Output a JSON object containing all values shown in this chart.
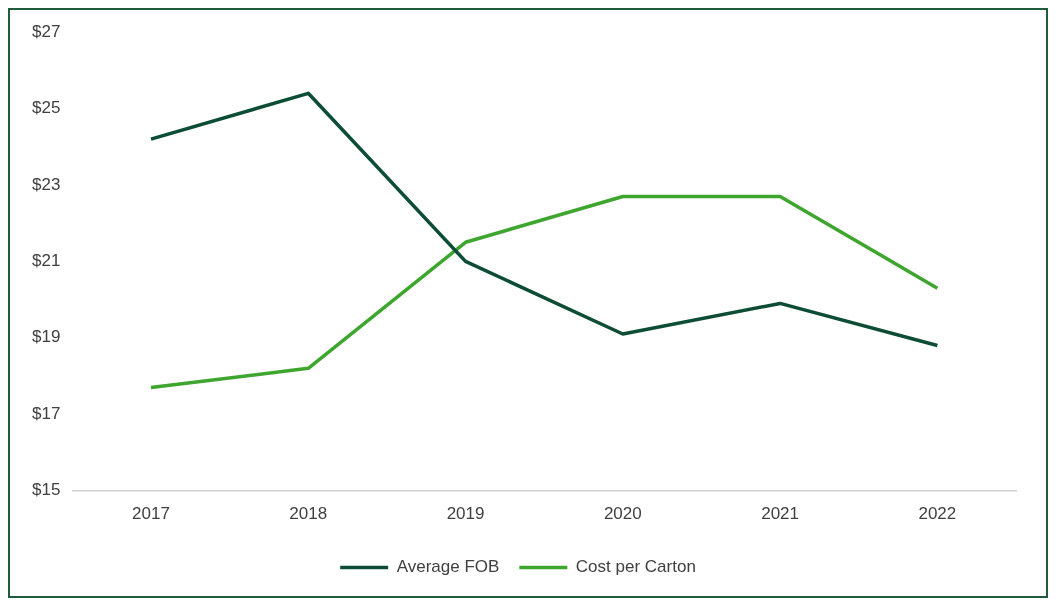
{
  "chart_data": {
    "type": "line",
    "categories": [
      "2017",
      "2018",
      "2019",
      "2020",
      "2021",
      "2022"
    ],
    "series": [
      {
        "name": "Average FOB",
        "color": "#0d4d35",
        "values": [
          24.2,
          25.4,
          21.0,
          19.1,
          19.9,
          18.8
        ]
      },
      {
        "name": "Cost per Carton",
        "color": "#3ea52e",
        "values": [
          17.7,
          18.2,
          21.5,
          22.7,
          22.7,
          20.3
        ]
      }
    ],
    "ylim": [
      15,
      27
    ],
    "yticks": [
      {
        "value": 15,
        "label": "$15"
      },
      {
        "value": 17,
        "label": "$17"
      },
      {
        "value": 19,
        "label": "$19"
      },
      {
        "value": 21,
        "label": "$21"
      },
      {
        "value": 23,
        "label": "$23"
      },
      {
        "value": 25,
        "label": "$25"
      },
      {
        "value": 27,
        "label": "$27"
      }
    ],
    "grid": false,
    "legend": "bottom",
    "marker": "none",
    "line_style": "solid"
  }
}
